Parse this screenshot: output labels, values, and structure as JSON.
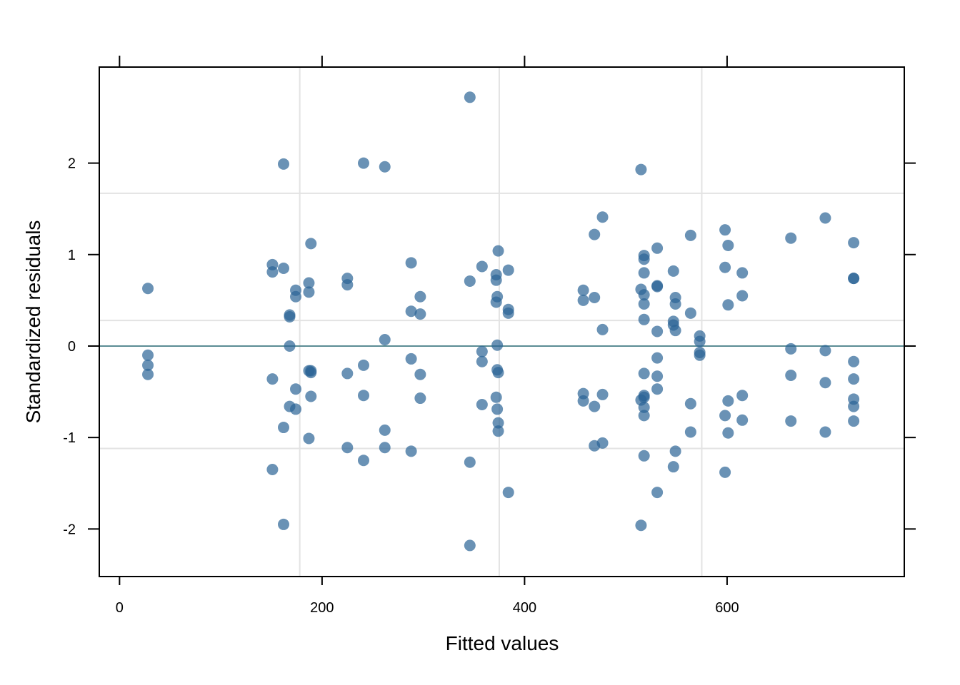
{
  "chart_data": {
    "type": "scatter",
    "xlabel": "Fitted values",
    "ylabel": "Standardized residuals",
    "xlim": [
      -20,
      775
    ],
    "ylim": [
      -2.52,
      3.05
    ],
    "xticks": [
      0,
      200,
      400,
      600
    ],
    "yticks": [
      -2,
      -1,
      0,
      1,
      2
    ],
    "xtick_labels": [
      "0",
      "200",
      "400",
      "600"
    ],
    "ytick_labels": [
      "-2",
      "-1",
      "0",
      "1",
      "2"
    ],
    "vgrid": [
      178,
      375,
      575
    ],
    "hgrid": [
      1.67,
      0.28,
      -1.12
    ],
    "ref_line": 0,
    "point_color": "#2b6496",
    "ref_line_color": "#5b8c94",
    "grid_color": "#e3e3e3",
    "points": [
      [
        28,
        0.63
      ],
      [
        28,
        -0.1
      ],
      [
        28,
        -0.21
      ],
      [
        28,
        -0.31
      ],
      [
        151,
        0.89
      ],
      [
        151,
        0.81
      ],
      [
        151,
        -0.36
      ],
      [
        151,
        -1.35
      ],
      [
        162,
        1.99
      ],
      [
        162,
        0.85
      ],
      [
        162,
        -0.89
      ],
      [
        162,
        -1.95
      ],
      [
        168,
        0.34
      ],
      [
        168,
        0.32
      ],
      [
        168,
        0.0
      ],
      [
        168,
        -0.66
      ],
      [
        174,
        0.61
      ],
      [
        174,
        0.54
      ],
      [
        174,
        -0.47
      ],
      [
        174,
        -0.69
      ],
      [
        187,
        0.69
      ],
      [
        187,
        0.59
      ],
      [
        187,
        -0.27
      ],
      [
        187,
        -1.01
      ],
      [
        189,
        1.12
      ],
      [
        189,
        -0.27
      ],
      [
        189,
        -0.29
      ],
      [
        189,
        -0.55
      ],
      [
        225,
        0.74
      ],
      [
        225,
        0.67
      ],
      [
        225,
        -0.3
      ],
      [
        225,
        -1.11
      ],
      [
        241,
        2.0
      ],
      [
        241,
        -0.21
      ],
      [
        241,
        -0.54
      ],
      [
        241,
        -1.25
      ],
      [
        262,
        1.96
      ],
      [
        262,
        0.07
      ],
      [
        262,
        -0.92
      ],
      [
        262,
        -1.11
      ],
      [
        288,
        0.91
      ],
      [
        288,
        0.38
      ],
      [
        288,
        -0.14
      ],
      [
        288,
        -1.15
      ],
      [
        297,
        0.54
      ],
      [
        297,
        0.35
      ],
      [
        297,
        -0.31
      ],
      [
        297,
        -0.57
      ],
      [
        346,
        2.72
      ],
      [
        346,
        0.71
      ],
      [
        346,
        -1.27
      ],
      [
        346,
        -2.18
      ],
      [
        358,
        0.87
      ],
      [
        358,
        -0.06
      ],
      [
        358,
        -0.17
      ],
      [
        358,
        -0.64
      ],
      [
        372,
        0.78
      ],
      [
        372,
        0.72
      ],
      [
        372,
        0.48
      ],
      [
        372,
        -0.56
      ],
      [
        373,
        0.54
      ],
      [
        373,
        0.01
      ],
      [
        373,
        -0.26
      ],
      [
        373,
        -0.69
      ],
      [
        374,
        1.04
      ],
      [
        374,
        -0.29
      ],
      [
        374,
        -0.84
      ],
      [
        374,
        -0.93
      ],
      [
        384,
        0.83
      ],
      [
        384,
        0.4
      ],
      [
        384,
        0.36
      ],
      [
        384,
        -1.6
      ],
      [
        458,
        0.61
      ],
      [
        458,
        0.5
      ],
      [
        458,
        -0.52
      ],
      [
        458,
        -0.6
      ],
      [
        469,
        1.22
      ],
      [
        469,
        0.53
      ],
      [
        469,
        -0.66
      ],
      [
        469,
        -1.09
      ],
      [
        477,
        1.41
      ],
      [
        477,
        0.18
      ],
      [
        477,
        -0.53
      ],
      [
        477,
        -1.06
      ],
      [
        515,
        1.93
      ],
      [
        515,
        0.62
      ],
      [
        515,
        -0.59
      ],
      [
        515,
        -1.96
      ],
      [
        518,
        0.99
      ],
      [
        518,
        0.95
      ],
      [
        518,
        0.8
      ],
      [
        518,
        0.56
      ],
      [
        518,
        0.46
      ],
      [
        518,
        0.29
      ],
      [
        518,
        -0.3
      ],
      [
        518,
        -0.54
      ],
      [
        518,
        -0.56
      ],
      [
        518,
        -0.67
      ],
      [
        518,
        -0.76
      ],
      [
        518,
        -1.2
      ],
      [
        531,
        1.07
      ],
      [
        531,
        0.66
      ],
      [
        531,
        0.65
      ],
      [
        531,
        0.16
      ],
      [
        531,
        -0.13
      ],
      [
        531,
        -0.33
      ],
      [
        531,
        -0.47
      ],
      [
        531,
        -1.6
      ],
      [
        547,
        0.82
      ],
      [
        547,
        0.27
      ],
      [
        547,
        0.23
      ],
      [
        547,
        -1.32
      ],
      [
        549,
        0.53
      ],
      [
        549,
        0.46
      ],
      [
        549,
        0.17
      ],
      [
        549,
        -1.15
      ],
      [
        564,
        1.21
      ],
      [
        564,
        0.36
      ],
      [
        564,
        -0.63
      ],
      [
        564,
        -0.94
      ],
      [
        573,
        0.11
      ],
      [
        573,
        0.05
      ],
      [
        573,
        -0.07
      ],
      [
        573,
        -0.1
      ],
      [
        598,
        1.27
      ],
      [
        598,
        0.86
      ],
      [
        598,
        -0.76
      ],
      [
        598,
        -1.38
      ],
      [
        601,
        1.1
      ],
      [
        601,
        0.45
      ],
      [
        601,
        -0.6
      ],
      [
        601,
        -0.95
      ],
      [
        615,
        0.8
      ],
      [
        615,
        0.55
      ],
      [
        615,
        -0.54
      ],
      [
        615,
        -0.81
      ],
      [
        663,
        1.18
      ],
      [
        663,
        -0.03
      ],
      [
        663,
        -0.32
      ],
      [
        663,
        -0.82
      ],
      [
        697,
        1.4
      ],
      [
        697,
        -0.05
      ],
      [
        697,
        -0.4
      ],
      [
        697,
        -0.94
      ],
      [
        725,
        1.13
      ],
      [
        725,
        0.74
      ],
      [
        725,
        0.74
      ],
      [
        725,
        -0.17
      ],
      [
        725,
        -0.36
      ],
      [
        725,
        -0.58
      ],
      [
        725,
        -0.66
      ],
      [
        725,
        -0.82
      ]
    ]
  }
}
